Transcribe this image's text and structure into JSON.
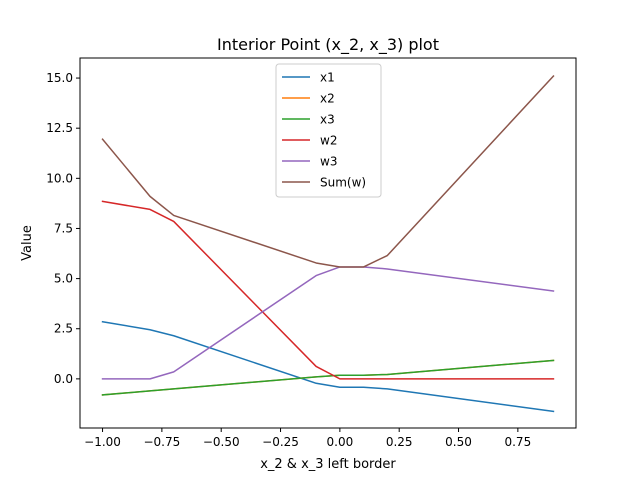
{
  "chart_data": {
    "type": "line",
    "title": "Interior Point (x_2, x_3) plot",
    "xlabel": "x_2 & x_3 left border",
    "ylabel": "Value",
    "xlim": [
      -1.095,
      0.995
    ],
    "ylim": [
      -2.45,
      16.0
    ],
    "xticks": [
      -1.0,
      -0.75,
      -0.5,
      -0.25,
      0.0,
      0.25,
      0.5,
      0.75
    ],
    "xtick_labels": [
      "−1.00",
      "−0.75",
      "−0.50",
      "−0.25",
      "0.00",
      "0.25",
      "0.50",
      "0.75"
    ],
    "yticks": [
      0.0,
      2.5,
      5.0,
      7.5,
      10.0,
      12.5,
      15.0
    ],
    "ytick_labels": [
      "0.0",
      "2.5",
      "5.0",
      "7.5",
      "10.0",
      "12.5",
      "15.0"
    ],
    "grid": false,
    "legend_position": "top-center",
    "series": [
      {
        "name": "x1",
        "color": "#1f77b4",
        "points": [
          [
            -1.0,
            2.85
          ],
          [
            -0.8,
            2.45
          ],
          [
            -0.7,
            2.15
          ],
          [
            -0.1,
            -0.22
          ],
          [
            0.0,
            -0.42
          ],
          [
            0.1,
            -0.42
          ],
          [
            0.2,
            -0.5
          ],
          [
            0.9,
            -1.62
          ]
        ]
      },
      {
        "name": "x2",
        "color": "#ff7f0e",
        "points": [
          [
            -1.0,
            -0.8
          ],
          [
            -0.8,
            -0.6
          ],
          [
            -0.7,
            -0.5
          ],
          [
            -0.1,
            0.1
          ],
          [
            0.0,
            0.18
          ],
          [
            0.1,
            0.18
          ],
          [
            0.2,
            0.22
          ],
          [
            0.9,
            0.92
          ]
        ]
      },
      {
        "name": "x3",
        "color": "#2ca02c",
        "points": [
          [
            -1.0,
            -0.8
          ],
          [
            -0.8,
            -0.6
          ],
          [
            -0.7,
            -0.5
          ],
          [
            -0.1,
            0.1
          ],
          [
            0.0,
            0.18
          ],
          [
            0.1,
            0.18
          ],
          [
            0.2,
            0.22
          ],
          [
            0.9,
            0.92
          ]
        ]
      },
      {
        "name": "w2",
        "color": "#d62728",
        "points": [
          [
            -1.0,
            8.85
          ],
          [
            -0.8,
            8.45
          ],
          [
            -0.7,
            7.85
          ],
          [
            -0.1,
            0.62
          ],
          [
            0.0,
            0.0
          ],
          [
            0.1,
            0.0
          ],
          [
            0.2,
            0.0
          ],
          [
            0.9,
            0.0
          ]
        ]
      },
      {
        "name": "w3",
        "color": "#9467bd",
        "points": [
          [
            -1.0,
            0.0
          ],
          [
            -0.8,
            0.0
          ],
          [
            -0.7,
            0.35
          ],
          [
            -0.1,
            5.15
          ],
          [
            0.0,
            5.58
          ],
          [
            0.1,
            5.58
          ],
          [
            0.2,
            5.48
          ],
          [
            0.9,
            4.38
          ]
        ]
      },
      {
        "name": "Sum(w)",
        "color": "#8c564b",
        "points": [
          [
            -1.0,
            11.95
          ],
          [
            -0.8,
            9.1
          ],
          [
            -0.7,
            8.15
          ],
          [
            -0.1,
            5.78
          ],
          [
            0.0,
            5.58
          ],
          [
            0.1,
            5.58
          ],
          [
            0.2,
            6.15
          ],
          [
            0.9,
            15.1
          ]
        ]
      }
    ]
  }
}
